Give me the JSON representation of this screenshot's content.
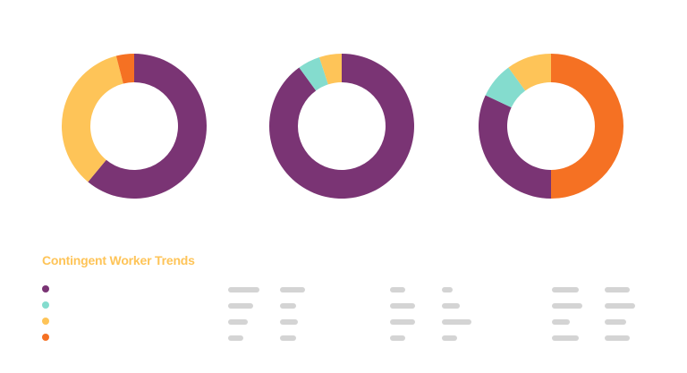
{
  "colors": {
    "purple": "#7a3474",
    "teal": "#84dcce",
    "yellow": "#fec458",
    "orange": "#f57123",
    "placeholder": "#d4d4d4"
  },
  "chart_data": [
    {
      "type": "pie",
      "donut": true,
      "series": [
        {
          "values": [
            61,
            35,
            4
          ],
          "colors": [
            "#7a3474",
            "#fec458",
            "#f57123"
          ]
        }
      ]
    },
    {
      "type": "pie",
      "donut": true,
      "series": [
        {
          "values": [
            90,
            5,
            5
          ],
          "colors": [
            "#7a3474",
            "#84dcce",
            "#fec458"
          ]
        }
      ]
    },
    {
      "type": "pie",
      "donut": true,
      "series": [
        {
          "values": [
            50,
            32,
            8,
            10
          ],
          "colors": [
            "#f57123",
            "#7a3474",
            "#84dcce",
            "#fec458"
          ]
        }
      ]
    }
  ],
  "panel": {
    "title": "Contingent Worker Trends",
    "title_color": "#fec458",
    "legend": [
      {
        "color": "#7a3474"
      },
      {
        "color": "#84dcce"
      },
      {
        "color": "#fec458"
      },
      {
        "color": "#f57123"
      }
    ]
  }
}
